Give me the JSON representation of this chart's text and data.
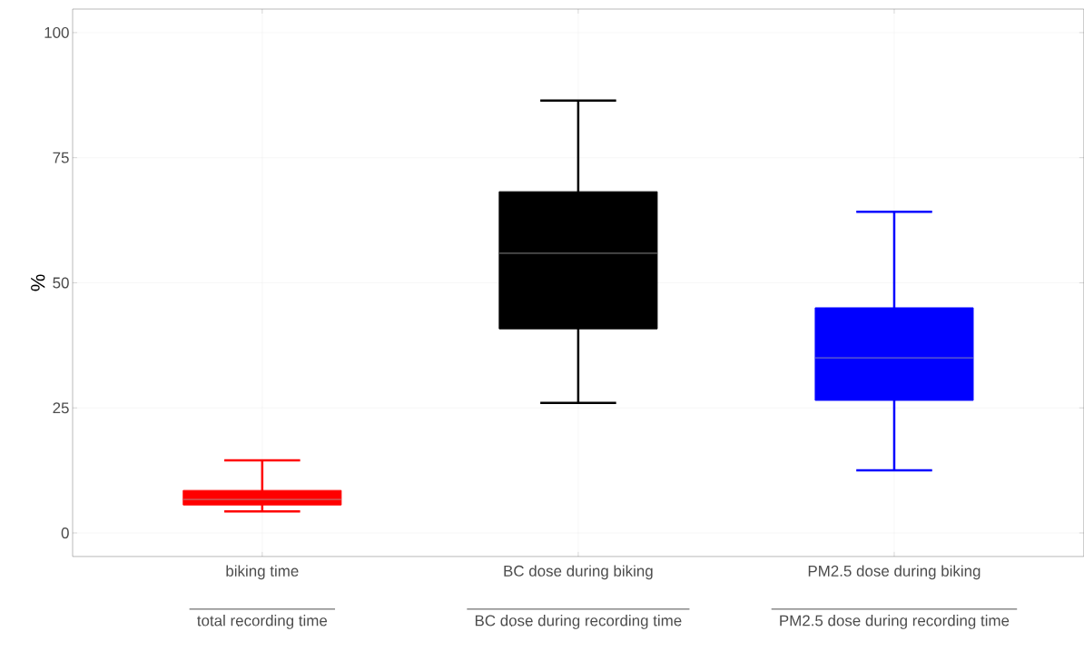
{
  "chart_data": {
    "type": "box",
    "ylabel": "%",
    "categories": [
      "biking time",
      "BC dose during biking",
      "PM2.5 dose during biking"
    ],
    "annotations": [
      "total recording time",
      "BC dose during recording time",
      "PM2.5 dose during recording time"
    ],
    "colors": [
      "#ff0000",
      "#000000",
      "#0000ff"
    ],
    "boxes": [
      {
        "low": 4.3,
        "q1": 5.6,
        "median": 6.7,
        "q3": 8.5,
        "high": 14.5
      },
      {
        "low": 26.0,
        "q1": 40.8,
        "median": 55.9,
        "q3": 68.2,
        "high": 86.4
      },
      {
        "low": 12.5,
        "q1": 26.5,
        "median": 35.0,
        "q3": 45.0,
        "high": 64.2
      }
    ],
    "ylim": [
      -4.7,
      104.7
    ],
    "yticks": [
      0,
      25,
      50,
      75,
      100
    ],
    "grid": true
  }
}
